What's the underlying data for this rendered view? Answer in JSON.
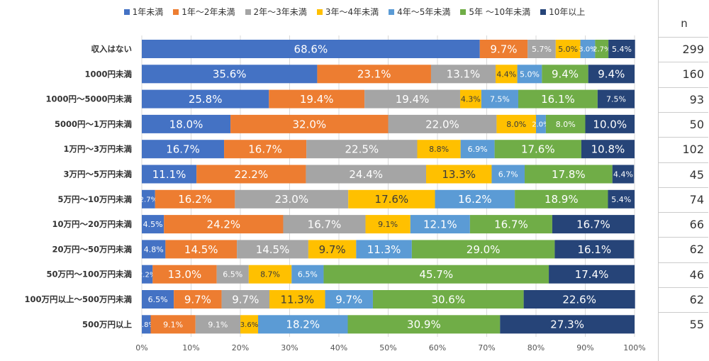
{
  "chart_data": {
    "type": "bar",
    "orientation": "horizontal",
    "stacked": true,
    "series_names": [
      "1年未満",
      "1年～2年未満",
      "2年～3年未満",
      "3年～4年未満",
      "4年～5年未満",
      "5年 ～10年未満",
      "10年以上"
    ],
    "colors": [
      "#4472C4",
      "#ED7D31",
      "#A5A5A5",
      "#FFC000",
      "#5B9BD5",
      "#70AD47",
      "#264478"
    ],
    "categories": [
      "収入はない",
      "1000円未満",
      "1000円～5000円未満",
      "5000円～1万円未満",
      "1万円～3万円未満",
      "3万円～5万円未満",
      "5万円～10万円未満",
      "10万円～20万円未満",
      "20万円～50万円未満",
      "50万円～100万円未満",
      "100万円以上～500万円未満",
      "500万円以上"
    ],
    "values": [
      [
        68.6,
        9.7,
        5.7,
        5.0,
        3.0,
        2.7,
        5.4
      ],
      [
        35.6,
        23.1,
        13.1,
        4.4,
        5.0,
        9.4,
        9.4
      ],
      [
        25.8,
        19.4,
        19.4,
        4.3,
        7.5,
        16.1,
        7.5
      ],
      [
        18.0,
        32.0,
        22.0,
        8.0,
        2.0,
        8.0,
        10.0
      ],
      [
        16.7,
        16.7,
        22.5,
        8.8,
        6.9,
        17.6,
        10.8
      ],
      [
        11.1,
        22.2,
        24.4,
        13.3,
        6.7,
        17.8,
        4.4
      ],
      [
        2.7,
        16.2,
        23.0,
        17.6,
        16.2,
        18.9,
        5.4
      ],
      [
        4.5,
        24.2,
        16.7,
        9.1,
        12.1,
        16.7,
        16.7
      ],
      [
        4.8,
        14.5,
        14.5,
        9.7,
        11.3,
        29.0,
        16.1
      ],
      [
        2.2,
        13.0,
        6.5,
        8.7,
        6.5,
        45.7,
        17.4
      ],
      [
        6.5,
        9.7,
        9.7,
        11.3,
        9.7,
        30.6,
        22.6
      ],
      [
        1.8,
        9.1,
        9.1,
        3.6,
        18.2,
        30.9,
        27.3
      ]
    ],
    "x_ticks": [
      "0%",
      "10%",
      "20%",
      "30%",
      "40%",
      "50%",
      "60%",
      "70%",
      "80%",
      "90%",
      "100%"
    ],
    "xlim": [
      0,
      100
    ],
    "legend": "top",
    "n_header": "n",
    "n_values": [
      "299",
      "160",
      "93",
      "50",
      "102",
      "45",
      "74",
      "66",
      "62",
      "46",
      "62",
      "55"
    ]
  }
}
